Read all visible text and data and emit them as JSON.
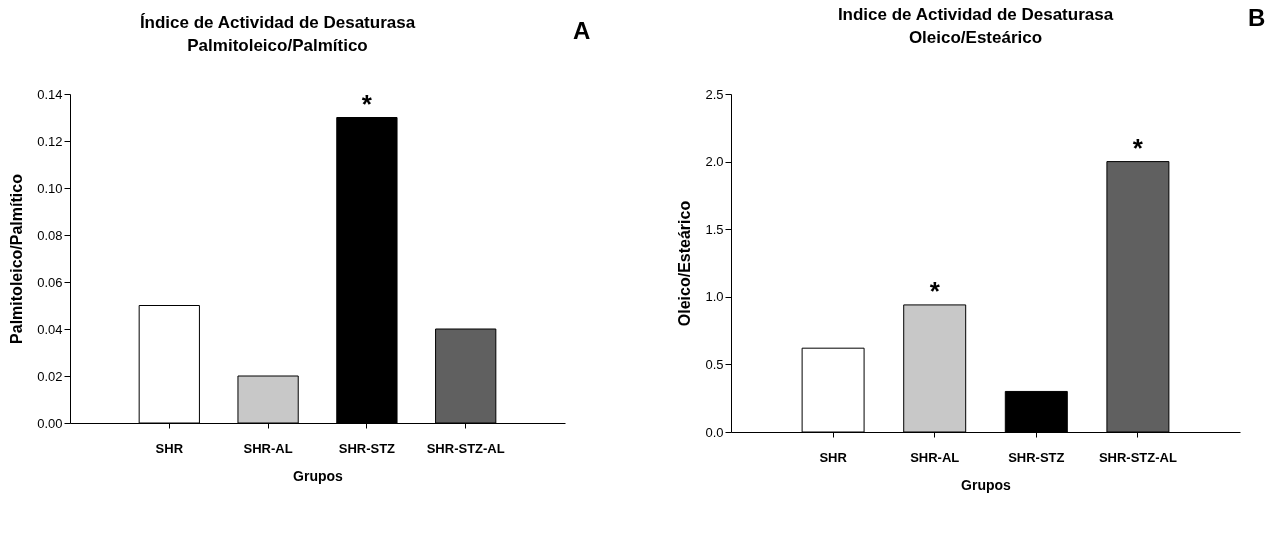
{
  "chart_data": [
    {
      "type": "bar",
      "title": "Índice de Actividad de Desaturasa\nPalmitoleico/Palmítico",
      "xlabel": "Grupos",
      "ylabel": "Palmitoleico/Palmítico",
      "categories": [
        "SHR",
        "SHR-AL",
        "SHR-STZ",
        "SHR-STZ-AL"
      ],
      "values": [
        0.05,
        0.02,
        0.13,
        0.04
      ],
      "colors": [
        "#ffffff",
        "#c8c8c8",
        "#000000",
        "#606060"
      ],
      "ylim": [
        0,
        0.14
      ],
      "yticks": [
        {
          "value": 0,
          "label": "0.00"
        },
        {
          "value": 0.02,
          "label": "0.02"
        },
        {
          "value": 0.04,
          "label": "0.04"
        },
        {
          "value": 0.06,
          "label": "0.06"
        },
        {
          "value": 0.08,
          "label": "0.08"
        },
        {
          "value": 0.1,
          "label": "0.10"
        },
        {
          "value": 0.12,
          "label": "0.12"
        },
        {
          "value": 0.14,
          "label": "0.14"
        }
      ],
      "grid": false,
      "annotations": [
        {
          "text": "*",
          "x": "SHR-STZ",
          "y": 0.13
        },
        "A"
      ]
    },
    {
      "type": "bar",
      "title": "Indice de Actividad de Desaturasa\nOleico/Esteárico",
      "xlabel": "Grupos",
      "ylabel": "Oleico/Esteárico",
      "categories": [
        "SHR",
        "SHR-AL",
        "SHR-STZ",
        "SHR-STZ-AL"
      ],
      "values": [
        0.62,
        0.94,
        0.3,
        2.0
      ],
      "colors": [
        "#ffffff",
        "#c8c8c8",
        "#000000",
        "#606060"
      ],
      "ylim": [
        0,
        2.5
      ],
      "yticks": [
        {
          "value": 0,
          "label": "0.0"
        },
        {
          "value": 0.5,
          "label": "0.5"
        },
        {
          "value": 1,
          "label": "1.0"
        },
        {
          "value": 1.5,
          "label": "1.5"
        },
        {
          "value": 2,
          "label": "2.0"
        },
        {
          "value": 2.5,
          "label": "2.5"
        }
      ],
      "grid": false,
      "annotations": [
        {
          "text": "*",
          "x": "SHR-AL",
          "y": 0.94
        },
        {
          "text": "*",
          "x": "SHR-STZ-AL",
          "y": 2.0
        },
        "B"
      ]
    }
  ]
}
